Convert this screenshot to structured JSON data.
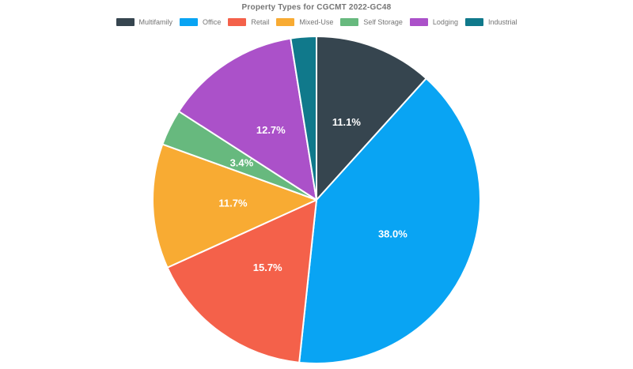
{
  "title": "Property Types for CGCMT 2022-GC48",
  "legend": {
    "items": [
      {
        "label": "Multifamily",
        "color": "#36454f"
      },
      {
        "label": "Office",
        "color": "#09a4f3"
      },
      {
        "label": "Retail",
        "color": "#f4614a"
      },
      {
        "label": "Mixed-Use",
        "color": "#f8ab33"
      },
      {
        "label": "Self Storage",
        "color": "#67b97e"
      },
      {
        "label": "Lodging",
        "color": "#ab51c9"
      },
      {
        "label": "Industrial",
        "color": "#10798b"
      }
    ]
  },
  "chart_data": {
    "type": "pie",
    "title": "Property Types for CGCMT 2022-GC48",
    "legend_position": "top",
    "start_angle_deg_from_north": 0,
    "direction": "clockwise",
    "label_radius_fraction": 0.51,
    "slice_border_color": "#ffffff",
    "slices": [
      {
        "name": "Multifamily",
        "value": 11.1,
        "label": "11.1%",
        "color": "#36454f"
      },
      {
        "name": "Office",
        "value": 38.0,
        "label": "38.0%",
        "color": "#09a4f3"
      },
      {
        "name": "Retail",
        "value": 15.7,
        "label": "15.7%",
        "color": "#f4614a"
      },
      {
        "name": "Mixed-Use",
        "value": 11.7,
        "label": "11.7%",
        "color": "#f8ab33"
      },
      {
        "name": "Self Storage",
        "value": 3.4,
        "label": "3.4%",
        "color": "#67b97e"
      },
      {
        "name": "Lodging",
        "value": 12.7,
        "label": "12.7%",
        "color": "#ab51c9"
      },
      {
        "name": "Industrial",
        "value": 2.4,
        "label": "",
        "color": "#10798b"
      }
    ]
  }
}
